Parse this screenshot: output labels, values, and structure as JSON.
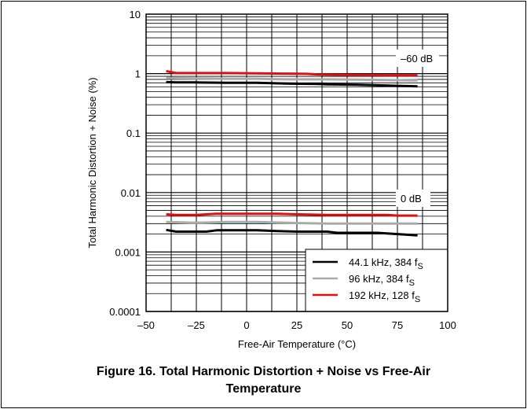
{
  "chart_data": {
    "type": "line",
    "xlabel": "Free-Air Temperature (°C)",
    "ylabel": "Total Harmonic Distortion + Noise (%)",
    "xlim": [
      -50,
      100
    ],
    "ylim": [
      0.0001,
      10
    ],
    "yscale": "log",
    "grid": true,
    "x_ticks": [
      "–50",
      "–25",
      "0",
      "25",
      "50",
      "75",
      "100"
    ],
    "y_ticks": [
      "0.0001",
      "0.001",
      "0.01",
      "0.1",
      "1",
      "10"
    ],
    "annotations": [
      "–60 dB",
      "0 dB"
    ],
    "legend_position": "bottom-right",
    "series": [
      {
        "name": "44.1 kHz, 384 fS",
        "color": "#000000",
        "group": "–60 dB",
        "x": [
          -40,
          -35,
          -25,
          -10,
          5,
          20,
          35,
          40,
          55,
          70,
          85
        ],
        "y": [
          0.72,
          0.71,
          0.71,
          0.7,
          0.7,
          0.68,
          0.67,
          0.66,
          0.65,
          0.63,
          0.61
        ]
      },
      {
        "name": "96 kHz, 384 fS",
        "color": "#aaaaaa",
        "group": "–60 dB",
        "x": [
          -40,
          -25,
          -10,
          5,
          20,
          40,
          55,
          70,
          85
        ],
        "y": [
          0.84,
          0.83,
          0.82,
          0.82,
          0.8,
          0.8,
          0.79,
          0.78,
          0.77
        ]
      },
      {
        "name": "192 kHz, 128 fS",
        "color": "#dd1111",
        "group": "–60 dB",
        "x": [
          -40,
          -35,
          -25,
          -10,
          5,
          20,
          30,
          35,
          40,
          55,
          70,
          85
        ],
        "y": [
          1.1,
          1.02,
          1.02,
          1.02,
          1.01,
          1.0,
          0.99,
          0.97,
          0.96,
          0.95,
          0.94,
          0.94
        ]
      },
      {
        "name": "44.1 kHz, 384 fS",
        "color": "#000000",
        "group": "0 dB",
        "x": [
          -40,
          -35,
          -20,
          -15,
          5,
          15,
          25,
          40,
          45,
          65,
          75,
          85
        ],
        "y": [
          0.00235,
          0.0022,
          0.0022,
          0.00232,
          0.00232,
          0.00225,
          0.0022,
          0.0022,
          0.0021,
          0.0021,
          0.002,
          0.0019
        ]
      },
      {
        "name": "96 kHz, 384 fS",
        "color": "#aaaaaa",
        "group": "0 dB",
        "x": [
          -40,
          -25,
          -10,
          5,
          20,
          40,
          55,
          70,
          85
        ],
        "y": [
          0.0032,
          0.0031,
          0.0032,
          0.0032,
          0.0031,
          0.003,
          0.003,
          0.003,
          0.003
        ]
      },
      {
        "name": "192 kHz, 128 fS",
        "color": "#dd1111",
        "group": "0 dB",
        "x": [
          -40,
          -35,
          -25,
          -20,
          -15,
          0,
          15,
          25,
          40,
          55,
          70,
          75,
          85
        ],
        "y": [
          0.0043,
          0.0042,
          0.0042,
          0.0043,
          0.0044,
          0.0044,
          0.0044,
          0.0043,
          0.0042,
          0.0042,
          0.0042,
          0.0041,
          0.0041
        ]
      }
    ]
  },
  "legend": [
    {
      "label": "44.1 kHz, 384 f",
      "sub": "S",
      "color": "#000000"
    },
    {
      "label": "96  kHz, 384 f",
      "sub": "S",
      "color": "#aaaaaa"
    },
    {
      "label": "192 kHz, 128 f",
      "sub": "S",
      "color": "#dd1111"
    }
  ],
  "caption": {
    "line1": "Figure 16. Total Harmonic Distortion + Noise vs Free-Air",
    "line2": "Temperature"
  }
}
